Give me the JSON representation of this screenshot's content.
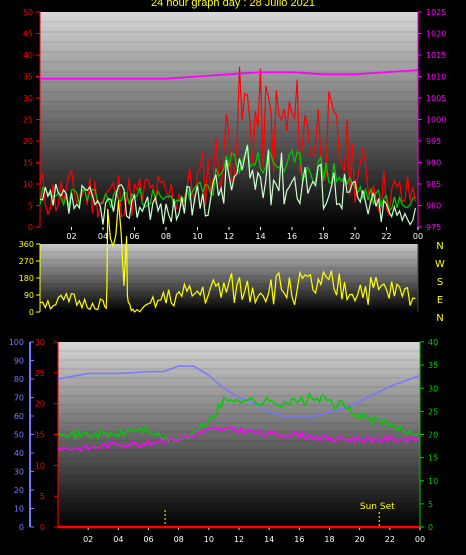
{
  "title": "24 hour graph day : 28 Julio 2021",
  "x_ticks": [
    "02",
    "04",
    "06",
    "08",
    "10",
    "12",
    "14",
    "16",
    "18",
    "20",
    "22",
    "00"
  ],
  "colors": {
    "red": "#ff0000",
    "green": "#00cc00",
    "pale_green": "#ccffcc",
    "magenta": "#ff00ff",
    "yellow": "#ffff00",
    "blue": "#7777ff",
    "panel_top": "#dcdcdc",
    "panel_bottom": "#000000"
  },
  "chart_data": [
    {
      "type": "line",
      "title": "",
      "x_range": [
        0,
        24
      ],
      "y_left": {
        "range": [
          0,
          50
        ],
        "ticks": [
          "0",
          "5",
          "10",
          "15",
          "20",
          "25",
          "30",
          "35",
          "40",
          "45",
          "50"
        ],
        "color": "#ff0000"
      },
      "y_right": {
        "range": [
          975,
          1025
        ],
        "ticks": [
          "975",
          "980",
          "985",
          "990",
          "995",
          "1000",
          "1005",
          "1010",
          "1015",
          "1020",
          "1025"
        ],
        "color": "#ff00ff"
      },
      "series": [
        {
          "color": "#ff0000",
          "axis": "left",
          "x": [
            0,
            1,
            2,
            3,
            4,
            5,
            6,
            7,
            8,
            9,
            10,
            11,
            12,
            12.5,
            13,
            14,
            15,
            16,
            17,
            18,
            19,
            20,
            21,
            22,
            23,
            24
          ],
          "y": [
            8,
            7,
            8,
            8,
            7,
            8,
            7,
            8,
            7,
            8,
            10,
            14,
            20,
            24,
            26,
            24,
            23,
            24,
            22,
            22,
            18,
            14,
            10,
            8,
            7,
            8
          ]
        },
        {
          "color": "#00cc00",
          "axis": "left",
          "x": [
            0,
            1,
            2,
            3,
            4,
            5,
            6,
            7,
            8,
            9,
            10,
            11,
            12,
            13,
            14,
            15,
            16,
            17,
            18,
            19,
            20,
            21,
            22,
            23,
            24
          ],
          "y": [
            7,
            7,
            7,
            7,
            6,
            7,
            7,
            7,
            6,
            7,
            8,
            10,
            14,
            17,
            15,
            15,
            14,
            14,
            13,
            12,
            9,
            7,
            6,
            5,
            7
          ]
        },
        {
          "color": "#ccffcc",
          "axis": "left",
          "x": [
            0,
            1,
            2,
            3,
            4,
            5,
            6,
            7,
            8,
            9,
            10,
            11,
            12,
            13,
            14,
            15,
            16,
            17,
            18,
            19,
            20,
            21,
            22,
            23,
            24
          ],
          "y": [
            5,
            6,
            5,
            6,
            4,
            6,
            5,
            6,
            3,
            5,
            6,
            8,
            11,
            13,
            11,
            12,
            11,
            11,
            10,
            10,
            7,
            5,
            4,
            2,
            5
          ]
        },
        {
          "color": "#ff00ff",
          "axis": "right",
          "x": [
            0,
            3,
            6,
            8,
            10,
            12,
            14,
            16,
            18,
            20,
            22,
            24
          ],
          "y": [
            1009.5,
            1009.5,
            1009.5,
            1009.5,
            1010,
            1010.5,
            1011,
            1011,
            1010.5,
            1010.5,
            1011,
            1011.5
          ]
        }
      ]
    },
    {
      "type": "line",
      "title": "",
      "x_range": [
        0,
        24
      ],
      "y_left": {
        "range": [
          0,
          360
        ],
        "ticks": [
          "0",
          "90",
          "180",
          "270",
          "360"
        ],
        "color": "#ffff00"
      },
      "y_right_labels": [
        "N",
        "W",
        "S",
        "E",
        "N"
      ],
      "series": [
        {
          "color": "#ffff00",
          "x": [
            0,
            0.5,
            1,
            2,
            3,
            4,
            4.2,
            4.3,
            5.5,
            5.6,
            5.8,
            6,
            6.5,
            7,
            8,
            10,
            12,
            14,
            16,
            18,
            20,
            22,
            24
          ],
          "y": [
            80,
            45,
            50,
            60,
            40,
            50,
            10,
            350,
            350,
            40,
            10,
            5,
            10,
            40,
            70,
            100,
            120,
            120,
            130,
            130,
            120,
            110,
            80
          ]
        }
      ]
    },
    {
      "type": "line",
      "title": "",
      "x_range": [
        0,
        24
      ],
      "y_axes": [
        {
          "range": [
            0,
            100
          ],
          "ticks": [
            "0",
            "10",
            "20",
            "30",
            "40",
            "50",
            "60",
            "70",
            "80",
            "90",
            "100"
          ],
          "color": "#7777ff"
        },
        {
          "range": [
            0,
            30
          ],
          "ticks": [
            "0",
            "5",
            "10",
            "15",
            "20",
            "25",
            "30"
          ],
          "color": "#ff0000"
        },
        {
          "range": [
            0,
            40
          ],
          "ticks": [
            "0",
            "5",
            "10",
            "15",
            "20",
            "25",
            "30",
            "35",
            "40"
          ],
          "color": "#00cc00"
        }
      ],
      "annotations": [
        {
          "text": "Sun Set",
          "x": 21.3
        }
      ],
      "series": [
        {
          "color": "#7777ff",
          "axis": 0,
          "x": [
            0,
            2,
            4,
            6,
            7,
            8,
            9,
            10,
            11,
            12,
            13,
            14,
            15,
            16,
            17,
            18,
            19,
            20,
            21,
            22,
            23,
            24
          ],
          "y": [
            80,
            83,
            83,
            84,
            84,
            87,
            87,
            82,
            75,
            70,
            67,
            62,
            60,
            60,
            60,
            62,
            64,
            68,
            72,
            76,
            79,
            82
          ]
        },
        {
          "color": "#00cc00",
          "axis": 2,
          "x": [
            0,
            1,
            2,
            3,
            4,
            5,
            6,
            7,
            8,
            9,
            10,
            11,
            12,
            13,
            14,
            15,
            16,
            17,
            18,
            19,
            20,
            21,
            22,
            23,
            24
          ],
          "y": [
            21,
            20,
            20,
            20,
            20,
            21,
            21,
            19,
            19,
            20,
            23,
            27,
            28,
            27,
            27,
            27,
            27,
            28,
            27,
            26,
            24,
            23,
            22,
            21,
            20
          ]
        },
        {
          "color": "#ff00ff",
          "axis": 2,
          "x": [
            0,
            2,
            4,
            6,
            7,
            8,
            9,
            10,
            11,
            12,
            14,
            16,
            18,
            20,
            22,
            24
          ],
          "y": [
            17,
            17,
            18,
            18,
            19,
            19,
            20,
            21,
            21,
            21,
            20,
            20,
            19,
            19,
            19,
            19
          ]
        },
        {
          "color": "#ff0000",
          "axis": 1,
          "x": [
            0,
            24
          ],
          "y": [
            0,
            0
          ]
        }
      ]
    }
  ]
}
